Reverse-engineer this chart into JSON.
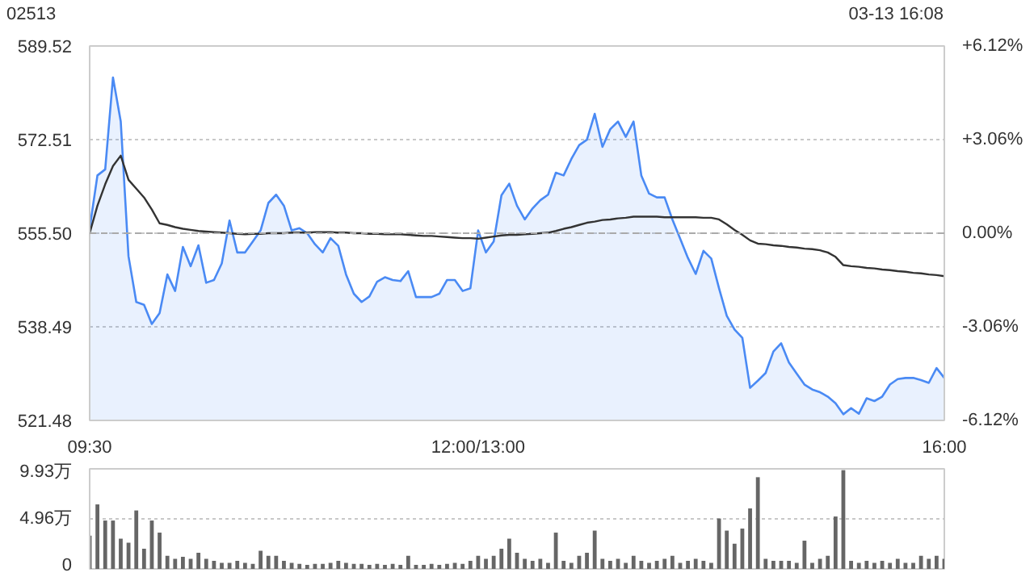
{
  "chart_data": [
    {
      "type": "line",
      "title": "02513",
      "annotations": [
        "03-13 16:08"
      ],
      "categories": [
        "09:30",
        null,
        null,
        null,
        null,
        null,
        null,
        null,
        null,
        null,
        null,
        null,
        null,
        null,
        null,
        null,
        null,
        null,
        null,
        null,
        null,
        null,
        null,
        null,
        null,
        null,
        null,
        null,
        null,
        null,
        null,
        null,
        null,
        null,
        null,
        null,
        null,
        null,
        null,
        null,
        null,
        null,
        null,
        null,
        null,
        null,
        null,
        null,
        null,
        null,
        "12:00/13:00",
        null,
        null,
        null,
        null,
        null,
        null,
        null,
        null,
        null,
        null,
        null,
        null,
        null,
        null,
        null,
        null,
        null,
        null,
        null,
        null,
        null,
        null,
        null,
        null,
        null,
        null,
        null,
        null,
        null,
        null,
        null,
        null,
        null,
        null,
        null,
        null,
        null,
        null,
        null,
        null,
        null,
        null,
        null,
        null,
        null,
        null,
        null,
        null,
        null,
        null,
        null,
        null,
        null,
        null,
        null,
        null,
        null,
        null,
        null,
        "16:00"
      ],
      "ylim": [
        521.48,
        589.52
      ],
      "yticks": [
        521.48,
        538.49,
        {
          "value": 555.5,
          "label": "555.50"
        },
        572.51,
        589.52
      ],
      "y2lim": [
        -6.12,
        6.12
      ],
      "y2ticks": [
        {
          "value": -6.12,
          "label": "-6.12%"
        },
        {
          "value": -3.06,
          "label": "-3.06%"
        },
        {
          "value": 0,
          "label": "0.00%"
        },
        {
          "value": 3.06,
          "label": "+3.06%"
        },
        {
          "value": 6.12,
          "label": "+6.12%"
        }
      ],
      "grid": "y",
      "ref_lines": [
        {
          "axis": "y",
          "value": 555.5,
          "line_style": "dashed",
          "color": "#aaaaaa"
        }
      ],
      "series": [
        {
          "type": "area",
          "color": "#4a8af4",
          "values": [
            556.4,
            566.0,
            567.1,
            583.8,
            575.8,
            551.3,
            543.0,
            542.5,
            539.0,
            541.0,
            548.0,
            545.0,
            553.0,
            549.5,
            553.3,
            546.5,
            547.0,
            550.0,
            557.8,
            552.0,
            552.0,
            554.0,
            556.0,
            561.0,
            562.5,
            560.5,
            556.0,
            556.4,
            555.5,
            553.5,
            552.0,
            554.6,
            553.2,
            548.0,
            544.5,
            543.0,
            544.0,
            546.7,
            547.5,
            547.0,
            546.8,
            548.6,
            543.9,
            543.9,
            543.9,
            544.5,
            547.0,
            547.0,
            545.0,
            545.5,
            556.0,
            552.0,
            554.0,
            562.4,
            564.5,
            560.5,
            558.0,
            560.0,
            561.5,
            562.5,
            566.5,
            566.0,
            569.0,
            571.5,
            572.5,
            577.2,
            571.2,
            574.4,
            575.8,
            573.0,
            575.8,
            566.0,
            562.7,
            562.0,
            562.0,
            558.0,
            554.5,
            551.0,
            548.1,
            552.3,
            550.9,
            545.5,
            540.5,
            538.0,
            536.5,
            527.4,
            528.7,
            530.1,
            534.0,
            535.5,
            532.0,
            530.0,
            528.0,
            527.1,
            526.6,
            525.8,
            524.6,
            522.6,
            523.7,
            522.7,
            525.5,
            525.0,
            525.8,
            528.0,
            529.0,
            529.2,
            529.2,
            528.8,
            528.3,
            531.0,
            529.2
          ]
        },
        {
          "type": "line",
          "color": "#333333",
          "values": [
            555.5,
            560.5,
            564.4,
            567.7,
            569.6,
            565.2,
            563.6,
            562.0,
            559.8,
            557.3,
            557.0,
            556.6,
            556.3,
            556.1,
            555.9,
            555.8,
            555.7,
            555.6,
            555.5,
            555.4,
            555.3,
            555.4,
            555.4,
            555.5,
            555.5,
            555.5,
            555.6,
            555.6,
            555.6,
            555.7,
            555.7,
            555.7,
            555.6,
            555.6,
            555.5,
            555.5,
            555.4,
            555.4,
            555.3,
            555.3,
            555.3,
            555.2,
            555.1,
            555.0,
            555.0,
            554.9,
            554.8,
            554.7,
            554.6,
            554.6,
            554.5,
            554.7,
            554.9,
            555.1,
            555.2,
            555.2,
            555.3,
            555.4,
            555.5,
            555.6,
            555.9,
            556.3,
            556.6,
            557.0,
            557.4,
            557.6,
            557.9,
            558.0,
            558.2,
            558.3,
            558.5,
            558.5,
            558.5,
            558.5,
            558.4,
            558.4,
            558.4,
            558.4,
            558.4,
            558.3,
            558.3,
            558.0,
            557.1,
            556.1,
            555.2,
            554.2,
            553.6,
            553.5,
            553.3,
            553.2,
            553.0,
            552.9,
            552.7,
            552.6,
            552.4,
            552.0,
            551.2,
            549.7,
            549.5,
            549.4,
            549.2,
            549.1,
            548.9,
            548.8,
            548.6,
            548.5,
            548.3,
            548.2,
            548.0,
            547.9,
            547.7
          ]
        }
      ]
    },
    {
      "type": "bar",
      "categories": [
        null,
        null,
        null,
        null,
        null,
        null,
        null,
        null,
        null,
        null,
        null,
        null,
        null,
        null,
        null,
        null,
        null,
        null,
        null,
        null,
        null,
        null,
        null,
        null,
        null,
        null,
        null,
        null,
        null,
        null,
        null,
        null,
        null,
        null,
        null,
        null,
        null,
        null,
        null,
        null,
        null,
        null,
        null,
        null,
        null,
        null,
        null,
        null,
        null,
        null,
        null,
        null,
        null,
        null,
        null,
        null,
        null,
        null,
        null,
        null,
        null,
        null,
        null,
        null,
        null,
        null,
        null,
        null,
        null,
        null,
        null,
        null,
        null,
        null,
        null,
        null,
        null,
        null,
        null,
        null,
        null,
        null,
        null,
        null,
        null,
        null,
        null,
        null,
        null,
        null,
        null,
        null,
        null,
        null,
        null,
        null,
        null,
        null,
        null,
        null,
        null,
        null,
        null,
        null,
        null,
        null,
        null,
        null,
        null,
        null,
        null
      ],
      "ylim": [
        0,
        9.93
      ],
      "yticks": [
        0,
        {
          "value": 4.96,
          "label": "4.96万"
        },
        {
          "value": 9.93,
          "label": "9.93万"
        }
      ],
      "tick_labels": "y",
      "grid": "y",
      "series": [
        {
          "color": "#666666",
          "values": [
            3.3,
            6.4,
            4.8,
            4.8,
            3.0,
            2.6,
            5.8,
            2.0,
            4.8,
            3.6,
            1.3,
            1.0,
            1.2,
            1.0,
            1.6,
            1.0,
            0.8,
            0.6,
            0.6,
            0.8,
            0.6,
            0.5,
            1.8,
            1.3,
            1.3,
            0.8,
            0.6,
            0.5,
            0.4,
            0.5,
            0.5,
            0.6,
            0.8,
            0.6,
            0.5,
            0.5,
            0.4,
            0.5,
            0.4,
            0.5,
            0.4,
            1.3,
            0.4,
            0.4,
            0.5,
            0.4,
            0.5,
            0.6,
            0.5,
            0.8,
            1.3,
            1.0,
            1.3,
            2.0,
            3.0,
            1.6,
            1.0,
            0.8,
            1.0,
            0.6,
            3.6,
            0.8,
            0.6,
            1.3,
            1.6,
            3.8,
            1.0,
            0.8,
            1.0,
            0.6,
            1.3,
            0.8,
            0.6,
            0.8,
            1.0,
            1.3,
            0.6,
            0.8,
            1.0,
            0.8,
            0.6,
            5.0,
            3.8,
            2.5,
            4.0,
            6.0,
            9.1,
            1.0,
            0.8,
            0.8,
            0.8,
            0.6,
            2.8,
            0.6,
            1.0,
            1.3,
            5.2,
            9.8,
            0.8,
            0.6,
            0.8,
            0.6,
            0.8,
            0.6,
            1.0,
            0.6,
            0.6,
            1.3,
            1.0,
            1.3,
            1.0
          ]
        }
      ]
    }
  ]
}
